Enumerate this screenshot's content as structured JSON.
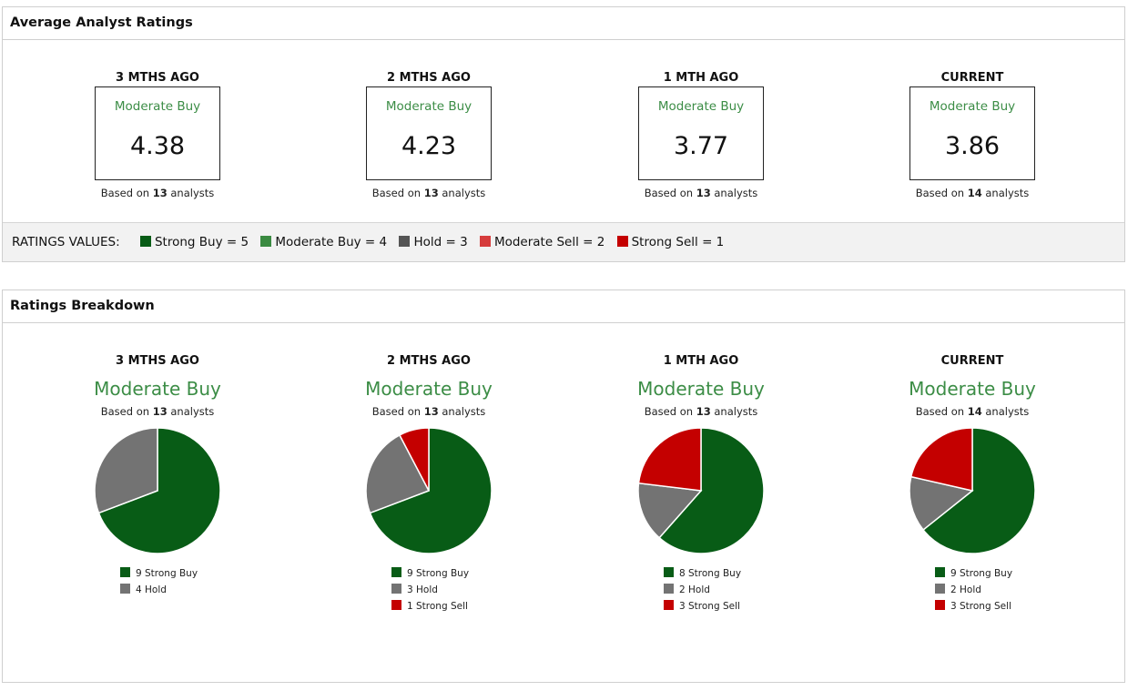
{
  "average_ratings": {
    "title": "Average Analyst Ratings",
    "cards": [
      {
        "period": "3 MTHS AGO",
        "rating": "Moderate Buy",
        "value": "4.38",
        "based_prefix": "Based on ",
        "analysts": "13",
        "based_suffix": " analysts"
      },
      {
        "period": "2 MTHS AGO",
        "rating": "Moderate Buy",
        "value": "4.23",
        "based_prefix": "Based on ",
        "analysts": "13",
        "based_suffix": " analysts"
      },
      {
        "period": "1 MTH AGO",
        "rating": "Moderate Buy",
        "value": "3.77",
        "based_prefix": "Based on ",
        "analysts": "13",
        "based_suffix": " analysts"
      },
      {
        "period": "CURRENT",
        "rating": "Moderate Buy",
        "value": "3.86",
        "based_prefix": "Based on ",
        "analysts": "14",
        "based_suffix": " analysts"
      }
    ],
    "legend": {
      "title": "RATINGS VALUES:",
      "items": [
        {
          "label": "Strong Buy = 5",
          "color": "#085c16"
        },
        {
          "label": "Moderate Buy = 4",
          "color": "#3a8a41"
        },
        {
          "label": "Hold = 3",
          "color": "#555555"
        },
        {
          "label": "Moderate Sell = 2",
          "color": "#d63c3c"
        },
        {
          "label": "Strong Sell = 1",
          "color": "#c40000"
        }
      ]
    }
  },
  "ratings_breakdown": {
    "title": "Ratings Breakdown"
  },
  "colors": {
    "strong_buy": "#085c16",
    "hold": "#737373",
    "strong_sell": "#c40000",
    "rating_text": "#3c8d46"
  },
  "chart_data": [
    {
      "type": "pie",
      "title": "3 MTHS AGO",
      "subtitle": "Moderate Buy",
      "based_prefix": "Based on ",
      "analysts": "13",
      "based_suffix": " analysts",
      "slices": [
        {
          "label": "Strong Buy",
          "value": 9,
          "legend": "9 Strong Buy",
          "color": "#085c16"
        },
        {
          "label": "Hold",
          "value": 4,
          "legend": "4 Hold",
          "color": "#737373"
        }
      ]
    },
    {
      "type": "pie",
      "title": "2 MTHS AGO",
      "subtitle": "Moderate Buy",
      "based_prefix": "Based on ",
      "analysts": "13",
      "based_suffix": " analysts",
      "slices": [
        {
          "label": "Strong Buy",
          "value": 9,
          "legend": "9 Strong Buy",
          "color": "#085c16"
        },
        {
          "label": "Hold",
          "value": 3,
          "legend": "3 Hold",
          "color": "#737373"
        },
        {
          "label": "Strong Sell",
          "value": 1,
          "legend": "1 Strong Sell",
          "color": "#c40000"
        }
      ]
    },
    {
      "type": "pie",
      "title": "1 MTH AGO",
      "subtitle": "Moderate Buy",
      "based_prefix": "Based on ",
      "analysts": "13",
      "based_suffix": " analysts",
      "slices": [
        {
          "label": "Strong Buy",
          "value": 8,
          "legend": "8 Strong Buy",
          "color": "#085c16"
        },
        {
          "label": "Hold",
          "value": 2,
          "legend": "2 Hold",
          "color": "#737373"
        },
        {
          "label": "Strong Sell",
          "value": 3,
          "legend": "3 Strong Sell",
          "color": "#c40000"
        }
      ]
    },
    {
      "type": "pie",
      "title": "CURRENT",
      "subtitle": "Moderate Buy",
      "based_prefix": "Based on ",
      "analysts": "14",
      "based_suffix": " analysts",
      "slices": [
        {
          "label": "Strong Buy",
          "value": 9,
          "legend": "9 Strong Buy",
          "color": "#085c16"
        },
        {
          "label": "Hold",
          "value": 2,
          "legend": "2 Hold",
          "color": "#737373"
        },
        {
          "label": "Strong Sell",
          "value": 3,
          "legend": "3 Strong Sell",
          "color": "#c40000"
        }
      ]
    }
  ]
}
